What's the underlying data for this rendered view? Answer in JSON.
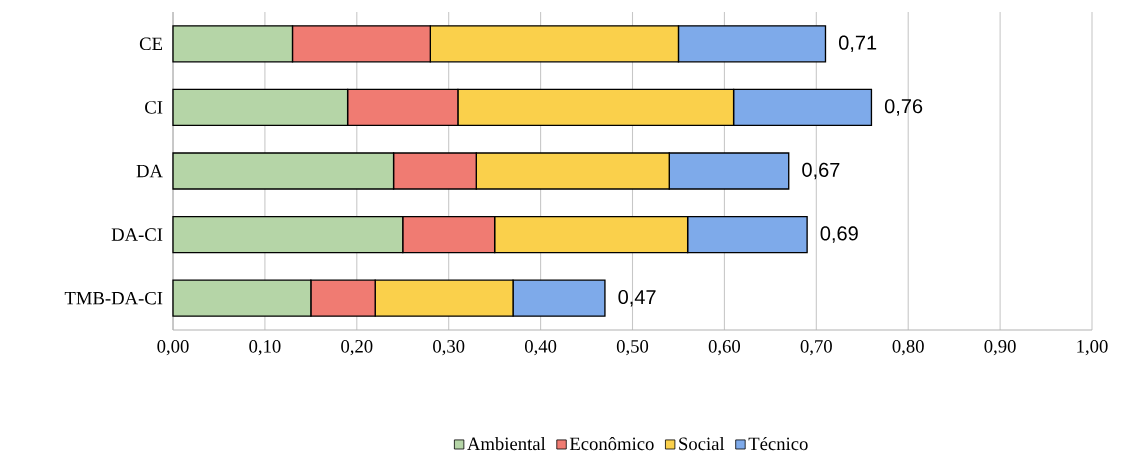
{
  "chart_data": {
    "type": "bar",
    "orientation": "horizontal",
    "stacked": true,
    "categories": [
      "CE",
      "CI",
      "DA",
      "DA-CI",
      "TMB-DA-CI"
    ],
    "series": [
      {
        "name": "Ambiental",
        "color": "#b5d5a7",
        "values": [
          0.13,
          0.19,
          0.24,
          0.25,
          0.15
        ]
      },
      {
        "name": "Econômico",
        "color": "#f07b72",
        "values": [
          0.15,
          0.12,
          0.09,
          0.1,
          0.07
        ]
      },
      {
        "name": "Social",
        "color": "#fad04b",
        "values": [
          0.27,
          0.3,
          0.21,
          0.21,
          0.15
        ]
      },
      {
        "name": "Técnico",
        "color": "#7eaaea",
        "values": [
          0.16,
          0.15,
          0.13,
          0.13,
          0.1
        ]
      }
    ],
    "totals": [
      "0,71",
      "0,76",
      "0,67",
      "0,69",
      "0,47"
    ],
    "xlim": [
      0,
      1
    ],
    "xticks": [
      {
        "value": 0,
        "label": "0,00"
      },
      {
        "value": 0.1,
        "label": "0,10"
      },
      {
        "value": 0.2,
        "label": "0,20"
      },
      {
        "value": 0.3,
        "label": "0,30"
      },
      {
        "value": 0.4,
        "label": "0,40"
      },
      {
        "value": 0.5,
        "label": "0,50"
      },
      {
        "value": 0.6,
        "label": "0,60"
      },
      {
        "value": 0.7,
        "label": "0,70"
      },
      {
        "value": 0.8,
        "label": "0,80"
      },
      {
        "value": 0.9,
        "label": "0,90"
      },
      {
        "value": 1,
        "label": "1,00"
      }
    ],
    "grid": "x",
    "legend": "bottom"
  }
}
